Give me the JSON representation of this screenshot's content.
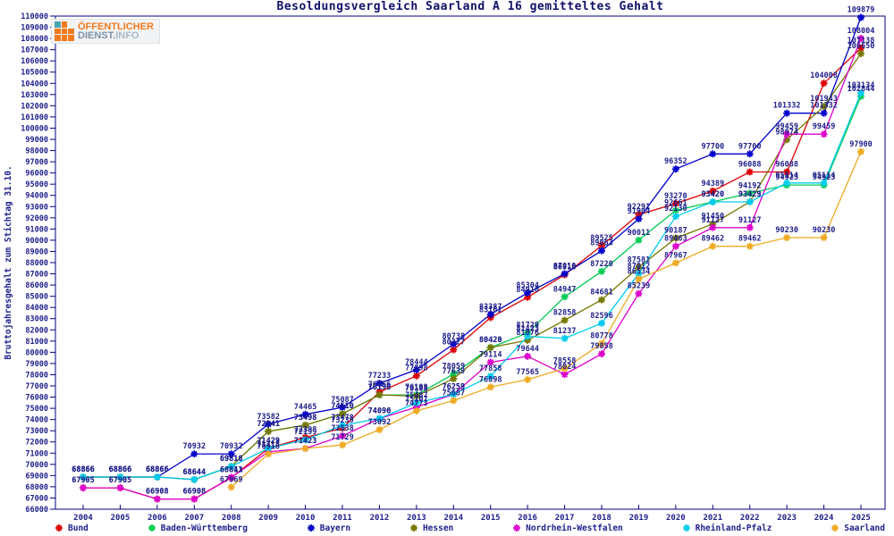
{
  "title": "Besoldungsvergleich Saarland A 16 gemitteltes Gehalt",
  "logo": {
    "line1": "ÖFFENTLICHER",
    "line2_a": "DIENST.",
    "line2_b": "INFO"
  },
  "y_axis": {
    "label": "Bruttojahresgehalt zum Stichtag 31.10.",
    "min": 66000,
    "max": 110000,
    "step": 1000
  },
  "colors": {
    "axis": "#000080",
    "text": "#20208c"
  },
  "chart_data": {
    "type": "line",
    "x": [
      2004,
      2005,
      2006,
      2007,
      2008,
      2009,
      2010,
      2011,
      2012,
      2013,
      2014,
      2015,
      2016,
      2017,
      2018,
      2019,
      2020,
      2021,
      2022,
      2023,
      2024,
      2025
    ],
    "ylim": [
      66000,
      110000
    ],
    "grid": false,
    "point_labels": true,
    "legend_position": "bottom",
    "series": [
      {
        "name": "Bund",
        "color": "#dd0000",
        "values": [
          67905,
          67905,
          66908,
          66908,
          68811,
          71423,
          72398,
          73239,
          76456,
          77898,
          80227,
          83101,
          84910,
          86916,
          89525,
          92291,
          93270,
          94389,
          96088,
          96088,
          104008,
          107138
        ]
      },
      {
        "name": "Baden-Württemberg",
        "color": "#00cc55",
        "values": [
          68866,
          68866,
          68866,
          68644,
          69816,
          72941,
          73498,
          74510,
          76190,
          76198,
          78059,
          80420,
          81729,
          84947,
          87220,
          90011,
          92661,
          93420,
          94192,
          94923,
          94923,
          102844
        ]
      },
      {
        "name": "Bayern",
        "color": "#0000cc",
        "values": [
          68866,
          68866,
          68866,
          70932,
          70932,
          73582,
          74465,
          75087,
          77233,
          78444,
          80738,
          83387,
          85304,
          87010,
          89063,
          91904,
          96352,
          97700,
          97700,
          101332,
          101332,
          109879
        ]
      },
      {
        "name": "Hessen",
        "color": "#777700",
        "values": [
          68866,
          68866,
          68866,
          68644,
          69816,
          72941,
          73498,
          74510,
          76196,
          76103,
          77639,
          80428,
          81076,
          82858,
          84681,
          87581,
          90187,
          91450,
          93429,
          98974,
          101943,
          106650
        ]
      },
      {
        "name": "Nordrhein-Westfalen",
        "color": "#dd00cc",
        "values": [
          67905,
          67905,
          66908,
          66908,
          68843,
          71118,
          71423,
          72538,
          74090,
          75107,
          76259,
          79114,
          79644,
          78024,
          79858,
          85239,
          89463,
          91127,
          91127,
          99459,
          99459,
          108004
        ]
      },
      {
        "name": "Rheinland-Pfalz",
        "color": "#00ccee",
        "values": [
          68866,
          68866,
          68866,
          68644,
          69816,
          71429,
          72199,
          73478,
          74096,
          75487,
          76253,
          77858,
          81423,
          81237,
          82596,
          87012,
          92130,
          93420,
          93423,
          95114,
          95114,
          103134
        ]
      },
      {
        "name": "Saarland",
        "color": "#eeaa22",
        "values": [
          null,
          null,
          null,
          null,
          67969,
          70918,
          71423,
          71729,
          73092,
          74773,
          75687,
          76898,
          77565,
          78558,
          80778,
          86534,
          87967,
          89462,
          89462,
          90230,
          90230,
          97900
        ]
      }
    ]
  }
}
